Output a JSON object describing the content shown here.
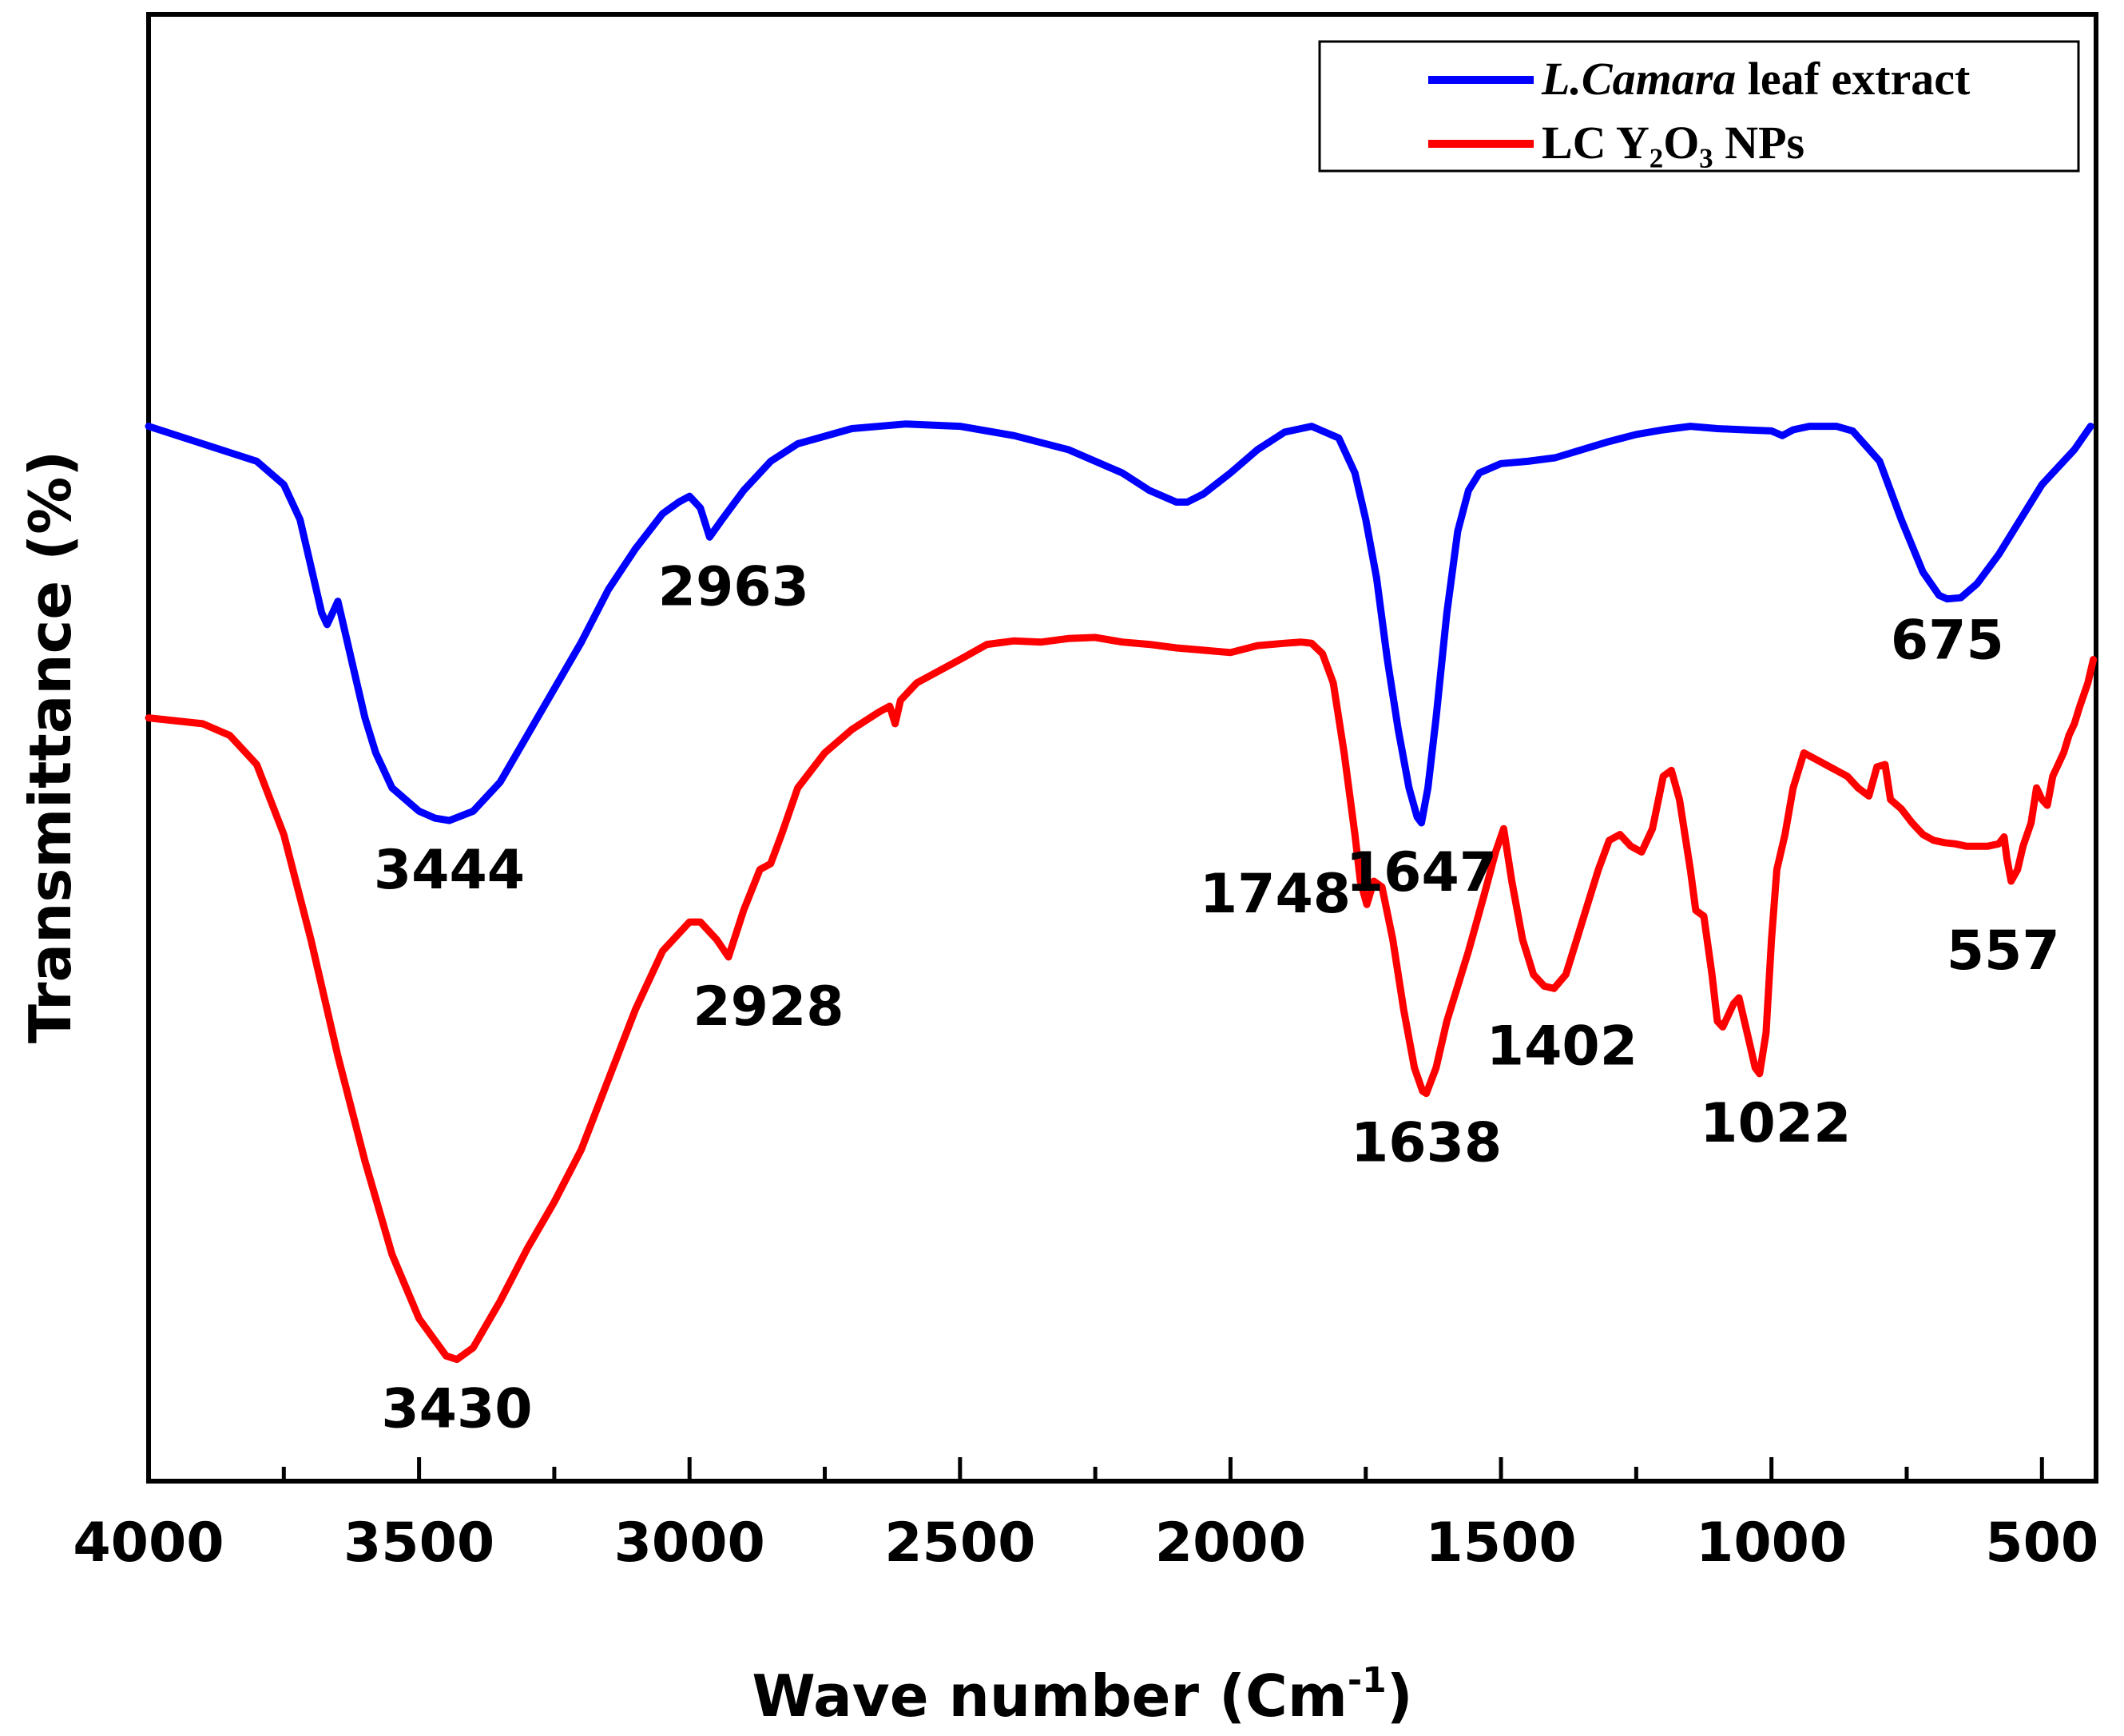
{
  "chart_data": {
    "type": "line",
    "xlabel": "Wave number (Cm",
    "xlabel_sup": "-1",
    "xlabel_close": ")",
    "ylabel": "Transmittance (%)",
    "xlim": [
      4000,
      400
    ],
    "ylim": [
      0,
      100
    ],
    "x_reversed": true,
    "x_ticks": [
      4000,
      3500,
      3000,
      2500,
      2000,
      1500,
      1000,
      500
    ],
    "x_tick_labels": [
      "4000",
      "3500",
      "3000",
      "2500",
      "2000",
      "1500",
      "1000",
      "500"
    ],
    "y_ticks_shown": false,
    "legend_position": "top-right",
    "series": [
      {
        "name": "L.Camara leaf extract",
        "legend_italic": "L.Camara",
        "legend_rest": " leaf extract",
        "color": "#0000ff",
        "points": [
          [
            4000,
            84
          ],
          [
            3900,
            82.5
          ],
          [
            3800,
            81
          ],
          [
            3750,
            79
          ],
          [
            3720,
            76
          ],
          [
            3700,
            72
          ],
          [
            3680,
            68
          ],
          [
            3670,
            67
          ],
          [
            3660,
            68
          ],
          [
            3650,
            69
          ],
          [
            3640,
            67
          ],
          [
            3620,
            63
          ],
          [
            3600,
            59
          ],
          [
            3580,
            56
          ],
          [
            3550,
            53
          ],
          [
            3500,
            51
          ],
          [
            3470,
            50.4
          ],
          [
            3444,
            50.2
          ],
          [
            3400,
            51
          ],
          [
            3350,
            53.5
          ],
          [
            3300,
            57.5
          ],
          [
            3250,
            61.5
          ],
          [
            3200,
            65.5
          ],
          [
            3150,
            70
          ],
          [
            3100,
            73.5
          ],
          [
            3050,
            76.5
          ],
          [
            3020,
            77.5
          ],
          [
            3000,
            78
          ],
          [
            2980,
            77
          ],
          [
            2963,
            74.5
          ],
          [
            2940,
            76
          ],
          [
            2900,
            78.5
          ],
          [
            2850,
            81
          ],
          [
            2800,
            82.5
          ],
          [
            2700,
            83.8
          ],
          [
            2600,
            84.2
          ],
          [
            2500,
            84
          ],
          [
            2400,
            83.2
          ],
          [
            2300,
            82
          ],
          [
            2200,
            80
          ],
          [
            2150,
            78.5
          ],
          [
            2100,
            77.5
          ],
          [
            2080,
            77.5
          ],
          [
            2050,
            78.2
          ],
          [
            2000,
            80
          ],
          [
            1950,
            82
          ],
          [
            1900,
            83.5
          ],
          [
            1850,
            84
          ],
          [
            1800,
            83
          ],
          [
            1770,
            80
          ],
          [
            1750,
            76
          ],
          [
            1730,
            71
          ],
          [
            1710,
            64
          ],
          [
            1690,
            58
          ],
          [
            1670,
            53
          ],
          [
            1655,
            50.5
          ],
          [
            1647,
            50
          ],
          [
            1635,
            53
          ],
          [
            1620,
            59
          ],
          [
            1600,
            68
          ],
          [
            1580,
            75
          ],
          [
            1560,
            78.5
          ],
          [
            1540,
            80
          ],
          [
            1500,
            80.8
          ],
          [
            1450,
            81
          ],
          [
            1400,
            81.3
          ],
          [
            1350,
            82
          ],
          [
            1300,
            82.7
          ],
          [
            1250,
            83.3
          ],
          [
            1200,
            83.7
          ],
          [
            1150,
            84
          ],
          [
            1100,
            83.8
          ],
          [
            1050,
            83.7
          ],
          [
            1000,
            83.6
          ],
          [
            980,
            83.2
          ],
          [
            960,
            83.7
          ],
          [
            930,
            84
          ],
          [
            880,
            84
          ],
          [
            850,
            83.6
          ],
          [
            800,
            81
          ],
          [
            760,
            76
          ],
          [
            720,
            71.5
          ],
          [
            690,
            69.5
          ],
          [
            675,
            69.2
          ],
          [
            650,
            69.3
          ],
          [
            620,
            70.5
          ],
          [
            580,
            73
          ],
          [
            540,
            76
          ],
          [
            500,
            79
          ],
          [
            470,
            80.5
          ],
          [
            440,
            82
          ],
          [
            410,
            84
          ]
        ]
      },
      {
        "name": "LC Y2O3 NPs",
        "legend_text": "LC Y₂O₃ NPs",
        "color": "#ff0000",
        "points": [
          [
            4000,
            59
          ],
          [
            3900,
            58.5
          ],
          [
            3850,
            57.5
          ],
          [
            3800,
            55
          ],
          [
            3750,
            49
          ],
          [
            3700,
            40
          ],
          [
            3650,
            30
          ],
          [
            3600,
            21
          ],
          [
            3550,
            13
          ],
          [
            3500,
            7.5
          ],
          [
            3450,
            4.3
          ],
          [
            3430,
            4
          ],
          [
            3400,
            5
          ],
          [
            3350,
            9
          ],
          [
            3300,
            13.5
          ],
          [
            3250,
            17.5
          ],
          [
            3200,
            22
          ],
          [
            3150,
            28
          ],
          [
            3100,
            34
          ],
          [
            3050,
            39
          ],
          [
            3000,
            41.5
          ],
          [
            2980,
            41.5
          ],
          [
            2950,
            40
          ],
          [
            2928,
            38.5
          ],
          [
            2900,
            42.5
          ],
          [
            2870,
            46
          ],
          [
            2850,
            46.5
          ],
          [
            2830,
            49
          ],
          [
            2800,
            53
          ],
          [
            2750,
            56
          ],
          [
            2700,
            58
          ],
          [
            2650,
            59.5
          ],
          [
            2630,
            60
          ],
          [
            2620,
            58.5
          ],
          [
            2610,
            60.5
          ],
          [
            2580,
            62
          ],
          [
            2500,
            64
          ],
          [
            2450,
            65.3
          ],
          [
            2400,
            65.6
          ],
          [
            2350,
            65.5
          ],
          [
            2300,
            65.8
          ],
          [
            2250,
            65.9
          ],
          [
            2200,
            65.5
          ],
          [
            2150,
            65.3
          ],
          [
            2100,
            65
          ],
          [
            2050,
            64.8
          ],
          [
            2000,
            64.6
          ],
          [
            1950,
            65.2
          ],
          [
            1900,
            65.4
          ],
          [
            1870,
            65.5
          ],
          [
            1850,
            65.4
          ],
          [
            1830,
            64.5
          ],
          [
            1810,
            62
          ],
          [
            1790,
            56
          ],
          [
            1770,
            49
          ],
          [
            1760,
            45
          ],
          [
            1748,
            43
          ],
          [
            1735,
            45
          ],
          [
            1720,
            44.5
          ],
          [
            1700,
            40
          ],
          [
            1680,
            34
          ],
          [
            1660,
            29
          ],
          [
            1645,
            27
          ],
          [
            1638,
            26.8
          ],
          [
            1620,
            29
          ],
          [
            1600,
            33
          ],
          [
            1560,
            39
          ],
          [
            1530,
            44
          ],
          [
            1510,
            47.5
          ],
          [
            1495,
            49.5
          ],
          [
            1480,
            45
          ],
          [
            1460,
            40
          ],
          [
            1440,
            37
          ],
          [
            1420,
            36
          ],
          [
            1402,
            35.8
          ],
          [
            1380,
            37
          ],
          [
            1360,
            40
          ],
          [
            1340,
            43
          ],
          [
            1320,
            46
          ],
          [
            1300,
            48.5
          ],
          [
            1280,
            49
          ],
          [
            1260,
            48
          ],
          [
            1240,
            47.5
          ],
          [
            1220,
            49.5
          ],
          [
            1200,
            54
          ],
          [
            1185,
            54.5
          ],
          [
            1170,
            52
          ],
          [
            1150,
            46
          ],
          [
            1140,
            42.5
          ],
          [
            1125,
            42
          ],
          [
            1110,
            37
          ],
          [
            1100,
            33
          ],
          [
            1090,
            32.5
          ],
          [
            1070,
            34.5
          ],
          [
            1060,
            35
          ],
          [
            1050,
            33
          ],
          [
            1040,
            31
          ],
          [
            1030,
            29
          ],
          [
            1022,
            28.5
          ],
          [
            1010,
            32
          ],
          [
            1000,
            40
          ],
          [
            990,
            46
          ],
          [
            975,
            49
          ],
          [
            960,
            53
          ],
          [
            940,
            56
          ],
          [
            920,
            55.5
          ],
          [
            900,
            55
          ],
          [
            880,
            54.5
          ],
          [
            860,
            54
          ],
          [
            840,
            53
          ],
          [
            820,
            52.3
          ],
          [
            805,
            54.8
          ],
          [
            790,
            55
          ],
          [
            780,
            52
          ],
          [
            760,
            51.2
          ],
          [
            740,
            50
          ],
          [
            720,
            49
          ],
          [
            700,
            48.5
          ],
          [
            680,
            48.3
          ],
          [
            660,
            48.2
          ],
          [
            640,
            48
          ],
          [
            620,
            48
          ],
          [
            600,
            48
          ],
          [
            580,
            48.2
          ],
          [
            570,
            48.8
          ],
          [
            565,
            47
          ],
          [
            557,
            45
          ],
          [
            545,
            46
          ],
          [
            535,
            48
          ],
          [
            520,
            50
          ],
          [
            510,
            53
          ],
          [
            500,
            52
          ],
          [
            490,
            51.5
          ],
          [
            480,
            54
          ],
          [
            470,
            55
          ],
          [
            460,
            56
          ],
          [
            450,
            57.5
          ],
          [
            440,
            58.5
          ],
          [
            430,
            60
          ],
          [
            415,
            62
          ],
          [
            405,
            64
          ]
        ]
      }
    ],
    "annotations": [
      {
        "text": "3444",
        "series": 0,
        "x": 3444
      },
      {
        "text": "2963",
        "series": 0,
        "x": 2963
      },
      {
        "text": "1647",
        "series": 0,
        "x": 1647
      },
      {
        "text": "675",
        "series": 0,
        "x": 675
      },
      {
        "text": "3430",
        "series": 1,
        "x": 3430
      },
      {
        "text": "2928",
        "series": 1,
        "x": 2928
      },
      {
        "text": "1748",
        "series": 1,
        "x": 1748
      },
      {
        "text": "1638",
        "series": 1,
        "x": 1638
      },
      {
        "text": "1402",
        "series": 1,
        "x": 1402
      },
      {
        "text": "1022",
        "series": 1,
        "x": 1022
      },
      {
        "text": "557",
        "series": 1,
        "x": 557
      }
    ]
  }
}
